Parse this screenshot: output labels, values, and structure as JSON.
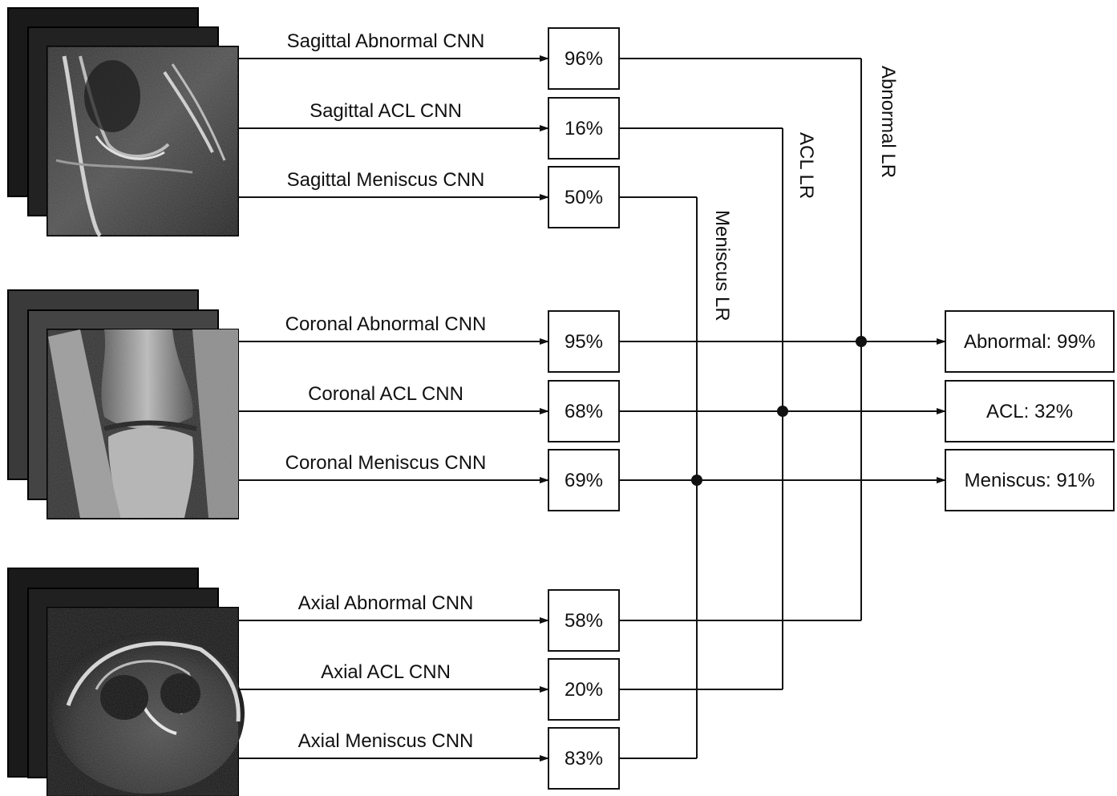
{
  "planes": [
    {
      "name": "sagittal",
      "rows": [
        {
          "label": "Sagittal Abnormal CNN",
          "value": "96%"
        },
        {
          "label": "Sagittal ACL CNN",
          "value": "16%"
        },
        {
          "label": "Sagittal Meniscus CNN",
          "value": "50%"
        }
      ]
    },
    {
      "name": "coronal",
      "rows": [
        {
          "label": "Coronal Abnormal CNN",
          "value": "95%"
        },
        {
          "label": "Coronal ACL CNN",
          "value": "68%"
        },
        {
          "label": "Coronal Meniscus CNN",
          "value": "69%"
        }
      ]
    },
    {
      "name": "axial",
      "rows": [
        {
          "label": "Axial Abnormal CNN",
          "value": "58%"
        },
        {
          "label": "Axial ACL CNN",
          "value": "20%"
        },
        {
          "label": "Axial Meniscus CNN",
          "value": "83%"
        }
      ]
    }
  ],
  "regressions": {
    "abnormal": "Abnormal LR",
    "acl": "ACL LR",
    "meniscus": "Meniscus LR"
  },
  "outputs": {
    "abnormal": "Abnormal: 99%",
    "acl": "ACL: 32%",
    "meniscus": "Meniscus: 91%"
  }
}
